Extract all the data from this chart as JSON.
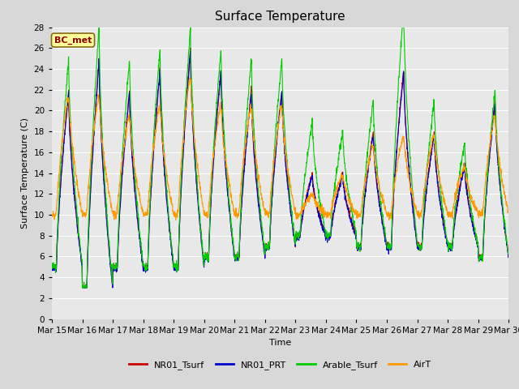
{
  "title": "Surface Temperature",
  "ylabel": "Surface Temperature (C)",
  "xlabel": "Time",
  "annotation": "BC_met",
  "ylim": [
    0,
    28
  ],
  "xtick_labels": [
    "Mar 15",
    "Mar 16",
    "Mar 17",
    "Mar 18",
    "Mar 19",
    "Mar 20",
    "Mar 21",
    "Mar 22",
    "Mar 23",
    "Mar 24",
    "Mar 25",
    "Mar 26",
    "Mar 27",
    "Mar 28",
    "Mar 29",
    "Mar 30"
  ],
  "legend_entries": [
    "NR01_Tsurf",
    "NR01_PRT",
    "Arable_Tsurf",
    "AirT"
  ],
  "line_colors": [
    "#cc0000",
    "#0000cc",
    "#00cc00",
    "#ff9900"
  ],
  "background_color": "#e8e8e8",
  "grid_color": "#ffffff",
  "title_fontsize": 11,
  "label_fontsize": 8,
  "tick_fontsize": 7.5,
  "fig_width": 6.4,
  "fig_height": 4.8,
  "dpi": 100,
  "day_peaks": [
    22,
    25,
    22,
    24,
    26,
    24,
    22,
    22,
    14,
    14,
    18,
    24,
    18,
    15,
    21
  ],
  "day_mins": [
    5,
    3,
    5,
    5,
    5,
    6,
    6,
    7,
    8,
    8,
    7,
    7,
    7,
    7,
    6
  ],
  "airt_day_peaks": [
    22,
    22,
    20,
    21,
    24,
    21,
    21,
    21,
    12,
    14,
    17,
    18,
    18,
    15,
    20
  ],
  "airt_day_mins": [
    10,
    10,
    10,
    10,
    10,
    10,
    10,
    10,
    10,
    10,
    10,
    10,
    10,
    10,
    10
  ],
  "arable_extra_peak": [
    3,
    3,
    3,
    2,
    2,
    2,
    3,
    3,
    5,
    4,
    3,
    6,
    3,
    2,
    1
  ]
}
